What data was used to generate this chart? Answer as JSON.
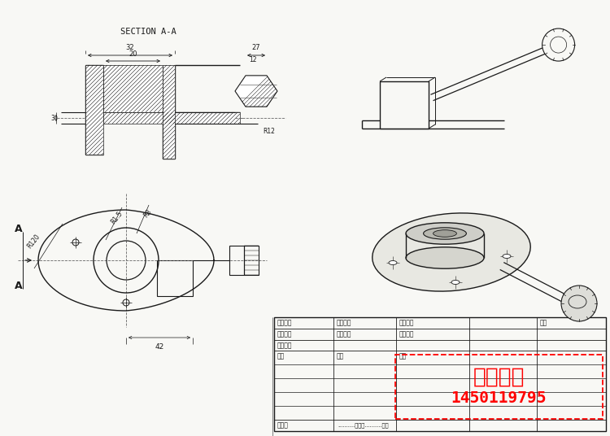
{
  "bg_color": "#f8f8f5",
  "line_color": "#1a1a1a",
  "title_section": "SECTION A-A",
  "watermark_line1": "做图暗号",
  "watermark_line2": "1450119795",
  "table_labels_row1": [
    "出图比例",
    "出图日期",
    "校对者名",
    "备注"
  ],
  "table_labels_row2": [
    "设计工式",
    "出图编号",
    "审核者名"
  ],
  "table_label_parts": "零件明细",
  "table_labels_row4": [
    "名称",
    "数量",
    "材料"
  ],
  "table_label_page": "本页共",
  "dim_32": "32",
  "dim_20": "20",
  "dim_27": "27",
  "dim_12": "12",
  "dim_R12": "R12",
  "dim_R120": "R120",
  "dim_R15": "R1.5",
  "dim_R8": "R8",
  "dim_42": "42",
  "dim_3": "3",
  "label_A": "A"
}
